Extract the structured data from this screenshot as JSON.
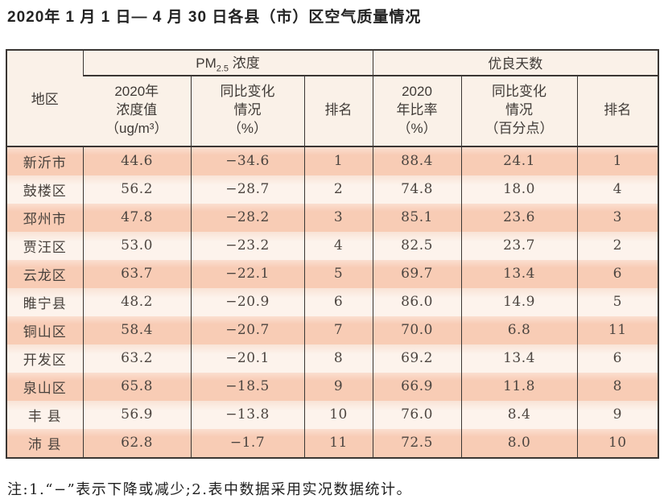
{
  "page": {
    "title": "2020年 1 月 1 日— 4 月 30 日各县（市）区空气质量情况",
    "note": "注:1.“−”表示下降或减少;2.表中数据采用实况数据统计。"
  },
  "colors": {
    "row_salmon": "#f8ccb5",
    "row_cream": "#fdf3ec",
    "header_bg": "#faf1e8",
    "grid_line": "#3a3633",
    "cell_text": "#4c4540"
  },
  "table": {
    "corner_header": "地区",
    "pm_group": {
      "prefix": "PM",
      "sub": "2.5",
      "suffix": " 浓度"
    },
    "days_group_label": "优良天数",
    "col_headers": [
      {
        "lines": [
          "2020年",
          "浓度值",
          "（ug/m³）"
        ]
      },
      {
        "lines": [
          "同比变化",
          "情况",
          "（%）"
        ]
      },
      {
        "lines": [
          "排名"
        ]
      },
      {
        "lines": [
          "2020",
          "年比率",
          "（%）"
        ]
      },
      {
        "lines": [
          "同比变化",
          "情况",
          "（百分点）"
        ]
      },
      {
        "lines": [
          "排名"
        ]
      }
    ],
    "rows": [
      {
        "region": "新沂市",
        "pm_value": "44.6",
        "pm_change": "−34.6",
        "pm_rank": "1",
        "days_rate": "88.4",
        "days_change": "24.1",
        "days_rank": "1"
      },
      {
        "region": "鼓楼区",
        "pm_value": "56.2",
        "pm_change": "−28.7",
        "pm_rank": "2",
        "days_rate": "74.8",
        "days_change": "18.0",
        "days_rank": "4"
      },
      {
        "region": "邳州市",
        "pm_value": "47.8",
        "pm_change": "−28.2",
        "pm_rank": "3",
        "days_rate": "85.1",
        "days_change": "23.6",
        "days_rank": "3"
      },
      {
        "region": "贾汪区",
        "pm_value": "53.0",
        "pm_change": "−23.2",
        "pm_rank": "4",
        "days_rate": "82.5",
        "days_change": "23.7",
        "days_rank": "2"
      },
      {
        "region": "云龙区",
        "pm_value": "63.7",
        "pm_change": "−22.1",
        "pm_rank": "5",
        "days_rate": "69.7",
        "days_change": "13.4",
        "days_rank": "6"
      },
      {
        "region": "睢宁县",
        "pm_value": "48.2",
        "pm_change": "−20.9",
        "pm_rank": "6",
        "days_rate": "86.0",
        "days_change": "14.9",
        "days_rank": "5"
      },
      {
        "region": "铜山区",
        "pm_value": "58.4",
        "pm_change": "−20.7",
        "pm_rank": "7",
        "days_rate": "70.0",
        "days_change": "6.8",
        "days_rank": "11"
      },
      {
        "region": "开发区",
        "pm_value": "63.2",
        "pm_change": "−20.1",
        "pm_rank": "8",
        "days_rate": "69.2",
        "days_change": "13.4",
        "days_rank": "6"
      },
      {
        "region": "泉山区",
        "pm_value": "65.8",
        "pm_change": "−18.5",
        "pm_rank": "9",
        "days_rate": "66.9",
        "days_change": "11.8",
        "days_rank": "8"
      },
      {
        "region": "丰 县",
        "pm_value": "56.9",
        "pm_change": "−13.8",
        "pm_rank": "10",
        "days_rate": "76.0",
        "days_change": "8.4",
        "days_rank": "9"
      },
      {
        "region": "沛 县",
        "pm_value": "62.8",
        "pm_change": "−1.7",
        "pm_rank": "11",
        "days_rate": "72.5",
        "days_change": "8.0",
        "days_rank": "10"
      }
    ]
  }
}
